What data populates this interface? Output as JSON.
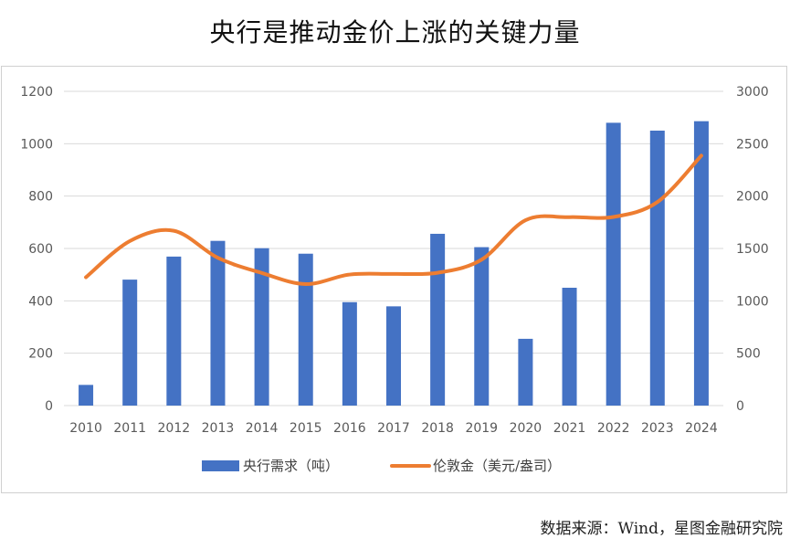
{
  "title": "央行是推动金价上涨的关键力量",
  "source": "数据来源：Wind，星图金融研究院",
  "chart_data": {
    "type": "bar",
    "categories": [
      "2010",
      "2011",
      "2012",
      "2013",
      "2014",
      "2015",
      "2016",
      "2017",
      "2018",
      "2019",
      "2020",
      "2021",
      "2022",
      "2023",
      "2024"
    ],
    "series": [
      {
        "name": "央行需求（吨）",
        "type": "bar",
        "axis": "left",
        "color": "#4472C4",
        "values": [
          79,
          481,
          569,
          629,
          601,
          580,
          395,
          379,
          656,
          605,
          255,
          450,
          1080,
          1050,
          1086
        ]
      },
      {
        "name": "伦敦金（美元/盎司）",
        "type": "line",
        "axis": "right",
        "color": "#ED7D31",
        "values": [
          1225,
          1571,
          1669,
          1411,
          1266,
          1160,
          1251,
          1257,
          1268,
          1393,
          1770,
          1799,
          1801,
          1943,
          2386
        ]
      }
    ],
    "y_left": {
      "min": 0,
      "max": 1200,
      "ticks": [
        "0",
        "200",
        "400",
        "600",
        "800",
        "1000",
        "1200"
      ]
    },
    "y_right": {
      "min": 0,
      "max": 3000,
      "ticks": [
        "0",
        "500",
        "1000",
        "1500",
        "2000",
        "2500",
        "3000"
      ]
    },
    "grid": true,
    "legend": "bottom"
  }
}
